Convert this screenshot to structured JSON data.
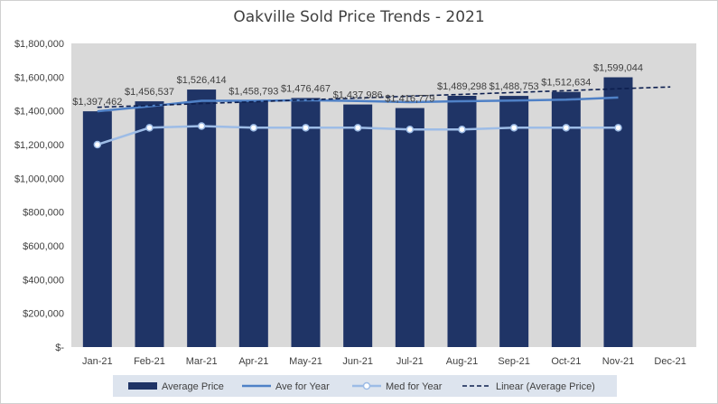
{
  "chart_data": {
    "type": "bar",
    "title": "Oakville Sold Price Trends - 2021",
    "xlabel": "",
    "ylabel": "",
    "ylim": [
      0,
      1800000
    ],
    "yticks": [
      0,
      200000,
      400000,
      600000,
      800000,
      1000000,
      1200000,
      1400000,
      1600000,
      1800000
    ],
    "ytick_labels": [
      "$-",
      "$200,000",
      "$400,000",
      "$600,000",
      "$800,000",
      "$1,000,000",
      "$1,200,000",
      "$1,400,000",
      "$1,600,000",
      "$1,800,000"
    ],
    "categories": [
      "Jan-21",
      "Feb-21",
      "Mar-21",
      "Apr-21",
      "May-21",
      "Jun-21",
      "Jul-21",
      "Aug-21",
      "Sep-21",
      "Oct-21",
      "Nov-21",
      "Dec-21"
    ],
    "grid": false,
    "legend": "bottom",
    "series": [
      {
        "name": "Average Price",
        "kind": "bar",
        "color": "#1f3466",
        "values": [
          1397462,
          1456537,
          1526414,
          1458793,
          1476467,
          1437986,
          1416779,
          1489298,
          1488753,
          1512634,
          1599044,
          null
        ],
        "labels": [
          "$1,397,462",
          "$1,456,537",
          "$1,526,414",
          "$1,458,793",
          "$1,476,467",
          "$1,437,986",
          "$1,416,779",
          "$1,489,298",
          "$1,488,753",
          "$1,512,634",
          "$1,599,044",
          ""
        ]
      },
      {
        "name": "Ave for Year",
        "kind": "line",
        "color": "#4f81c7",
        "values": [
          1397462,
          1427000,
          1460000,
          1460000,
          1463000,
          1459000,
          1452000,
          1457000,
          1461000,
          1466000,
          1479000,
          null
        ]
      },
      {
        "name": "Med for Year",
        "kind": "line-markers",
        "color": "#9dbce6",
        "values": [
          1200000,
          1300000,
          1310000,
          1300000,
          1300000,
          1300000,
          1290000,
          1290000,
          1300000,
          1300000,
          1300000,
          null
        ]
      },
      {
        "name": "Linear (Average Price)",
        "kind": "trendline",
        "color": "#0d1f4f",
        "values": [
          1421000,
          1432000,
          1443000,
          1454000,
          1465000,
          1476000,
          1487000,
          1498000,
          1509000,
          1520000,
          1531000,
          1542000
        ]
      }
    ]
  }
}
